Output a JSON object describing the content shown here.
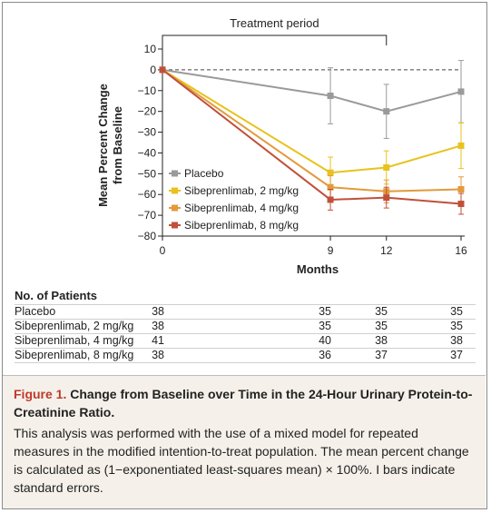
{
  "chart_data": {
    "type": "line",
    "title": "",
    "xlabel": "Months",
    "ylabel_line1": "Mean Percent Change",
    "ylabel_line2": "from Baseline",
    "x": [
      0,
      9,
      12,
      16
    ],
    "xticks": [
      "0",
      "9",
      "12",
      "16"
    ],
    "xlim": [
      0,
      16
    ],
    "ylim": [
      -80,
      10
    ],
    "yticks": [
      10,
      0,
      -10,
      -20,
      -30,
      -40,
      -50,
      -60,
      -70,
      -80
    ],
    "ytick_labels": [
      "10",
      "0",
      "−10",
      "−20",
      "−30",
      "−40",
      "−50",
      "−60",
      "−70",
      "−80"
    ],
    "bracket_label": "Treatment period",
    "bracket_range": [
      0,
      12
    ],
    "reference_line_y": 0,
    "legend_position": "lower-left",
    "series": [
      {
        "name": "Placebo",
        "color": "#9a9a9a",
        "values": [
          0,
          -12.5,
          -20,
          -10.5
        ],
        "se": [
          0,
          13.5,
          13,
          15
        ]
      },
      {
        "name": "Sibeprenlimab, 2 mg/kg",
        "color": "#e8c21e",
        "values": [
          0,
          -49.5,
          -47,
          -36.5
        ],
        "se": [
          0,
          7.5,
          8,
          11
        ]
      },
      {
        "name": "Sibeprenlimab, 4 mg/kg",
        "color": "#e39a3b",
        "values": [
          0,
          -56.5,
          -58.5,
          -57.5
        ],
        "se": [
          0,
          5.5,
          5.5,
          6
        ]
      },
      {
        "name": "Sibeprenlimab, 8 mg/kg",
        "color": "#c0503a",
        "values": [
          0,
          -62.5,
          -61.5,
          -64.5
        ],
        "se": [
          0,
          5,
          5,
          5
        ]
      }
    ]
  },
  "patients": {
    "header": "No. of Patients",
    "rows": [
      {
        "label": "Placebo",
        "counts": [
          "38",
          "35",
          "35",
          "35"
        ]
      },
      {
        "label": "Sibeprenlimab, 2 mg/kg",
        "counts": [
          "38",
          "35",
          "35",
          "35"
        ]
      },
      {
        "label": "Sibeprenlimab, 4 mg/kg",
        "counts": [
          "41",
          "40",
          "38",
          "38"
        ]
      },
      {
        "label": "Sibeprenlimab, 8 mg/kg",
        "counts": [
          "38",
          "36",
          "37",
          "37"
        ]
      }
    ]
  },
  "caption": {
    "figure_label": "Figure 1.",
    "title": "Change from Baseline over Time in the 24-Hour Urinary Protein-to-Creatinine Ratio.",
    "body": "This analysis was performed with the use of a mixed model for repeated measures in the modified intention-to-treat population. The mean percent change is calculated as (1−exponentiated least-squares mean) × 100%. I bars indicate standard errors.",
    "title_color": "#c0392b",
    "background": "#f5f1ea"
  }
}
